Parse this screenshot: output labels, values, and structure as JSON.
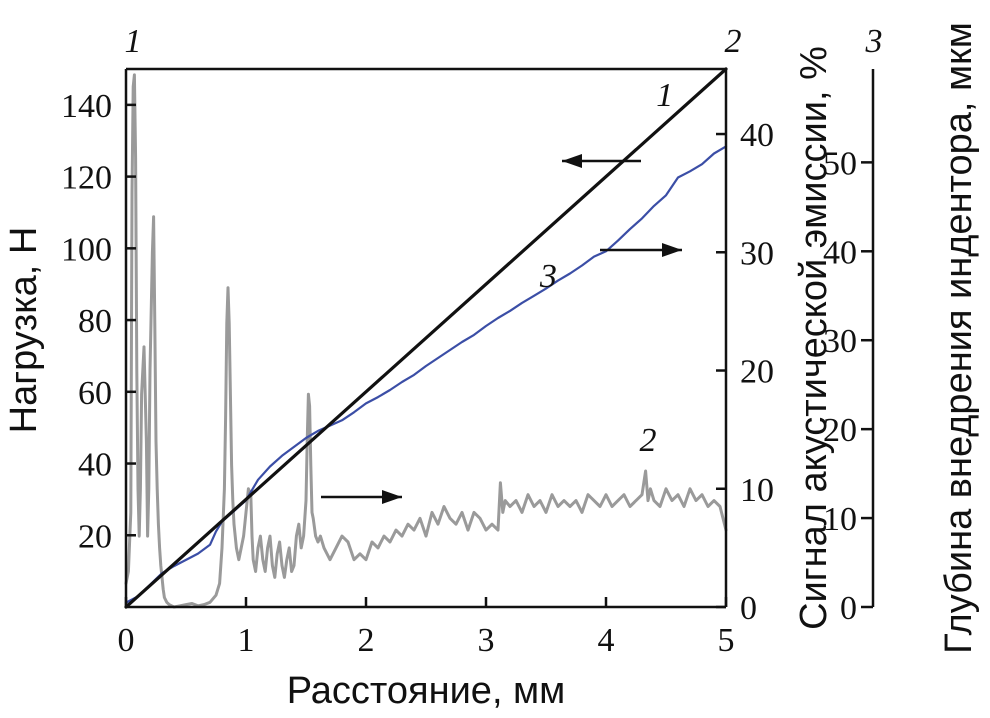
{
  "chart_data": {
    "type": "line",
    "xlabel": "Расстояние, мм",
    "ylabel_left": "Нагрузка, Н",
    "ylabel_right1": "Сигнал акустической эмиссии, %",
    "ylabel_right2": "Глубина внедрения индентора, мкм",
    "xlim": [
      0,
      5
    ],
    "ylim_left": [
      0,
      150
    ],
    "ylim_right1": [
      0,
      45.5
    ],
    "ylim_right2": [
      0,
      60.5
    ],
    "x_ticks": [
      "0",
      "1",
      "2",
      "3",
      "4",
      "5"
    ],
    "y_left_ticks": [
      "20",
      "40",
      "60",
      "80",
      "100",
      "120",
      "140"
    ],
    "y_right1_ticks": [
      "0",
      "10",
      "20",
      "30",
      "40"
    ],
    "y_right2_ticks": [
      "0",
      "10",
      "20",
      "30",
      "40",
      "50"
    ],
    "axis_numbers": {
      "left": "1",
      "right1": "2",
      "right2": "3"
    },
    "series": [
      {
        "name": "1",
        "axis": "left",
        "color": "#111111",
        "x": [
          0,
          5
        ],
        "y": [
          0,
          150
        ]
      },
      {
        "name": "2",
        "axis": "right1",
        "color": "#9a9a9a",
        "x": [
          0.0,
          0.02,
          0.04,
          0.05,
          0.06,
          0.07,
          0.08,
          0.09,
          0.1,
          0.11,
          0.12,
          0.13,
          0.15,
          0.17,
          0.18,
          0.19,
          0.2,
          0.21,
          0.22,
          0.23,
          0.24,
          0.25,
          0.26,
          0.27,
          0.28,
          0.29,
          0.3,
          0.31,
          0.32,
          0.34,
          0.36,
          0.38,
          0.4,
          0.45,
          0.5,
          0.55,
          0.6,
          0.65,
          0.7,
          0.75,
          0.78,
          0.8,
          0.82,
          0.83,
          0.84,
          0.85,
          0.86,
          0.87,
          0.88,
          0.89,
          0.9,
          0.92,
          0.94,
          0.96,
          0.98,
          1.0,
          1.02,
          1.04,
          1.05,
          1.06,
          1.08,
          1.1,
          1.12,
          1.14,
          1.16,
          1.18,
          1.2,
          1.22,
          1.24,
          1.26,
          1.28,
          1.3,
          1.32,
          1.34,
          1.36,
          1.38,
          1.4,
          1.42,
          1.44,
          1.46,
          1.48,
          1.5,
          1.51,
          1.52,
          1.53,
          1.54,
          1.55,
          1.56,
          1.58,
          1.6,
          1.62,
          1.65,
          1.7,
          1.75,
          1.8,
          1.85,
          1.9,
          1.95,
          2.0,
          2.05,
          2.1,
          2.15,
          2.2,
          2.25,
          2.3,
          2.35,
          2.4,
          2.45,
          2.5,
          2.55,
          2.6,
          2.65,
          2.7,
          2.75,
          2.8,
          2.85,
          2.9,
          2.95,
          3.0,
          3.05,
          3.1,
          3.12,
          3.14,
          3.16,
          3.2,
          3.25,
          3.3,
          3.35,
          3.4,
          3.45,
          3.5,
          3.55,
          3.6,
          3.65,
          3.7,
          3.75,
          3.8,
          3.85,
          3.9,
          3.95,
          4.0,
          4.05,
          4.1,
          4.15,
          4.2,
          4.25,
          4.3,
          4.33,
          4.35,
          4.37,
          4.4,
          4.45,
          4.5,
          4.55,
          4.6,
          4.65,
          4.7,
          4.75,
          4.8,
          4.85,
          4.9,
          4.95,
          5.0
        ],
        "y": [
          2.0,
          3.0,
          8.0,
          35.0,
          44.0,
          45.0,
          38.0,
          20.0,
          10.0,
          6.0,
          10.0,
          18.0,
          22.0,
          14.0,
          6.0,
          10.0,
          20.0,
          25.0,
          30.0,
          33.0,
          24.0,
          14.0,
          10.0,
          7.0,
          5.0,
          3.5,
          2.5,
          1.5,
          0.8,
          0.4,
          0.2,
          0.1,
          0.0,
          0.1,
          0.2,
          0.3,
          0.1,
          0.2,
          0.4,
          1.0,
          2.0,
          5.0,
          10.0,
          16.0,
          24.0,
          27.0,
          24.0,
          18.0,
          12.0,
          9.0,
          7.0,
          5.0,
          4.0,
          5.0,
          6.0,
          8.0,
          10.0,
          9.5,
          6.0,
          4.0,
          3.0,
          5.0,
          6.0,
          4.0,
          3.0,
          5.0,
          6.0,
          3.5,
          2.5,
          4.5,
          5.5,
          3.5,
          2.5,
          4.0,
          5.0,
          3.0,
          3.5,
          6.0,
          7.0,
          5.0,
          6.0,
          9.0,
          14.0,
          18.0,
          17.0,
          12.0,
          8.0,
          7.5,
          6.0,
          5.5,
          6.0,
          5.0,
          4.0,
          5.0,
          6.0,
          5.5,
          4.0,
          4.5,
          4.0,
          5.5,
          5.0,
          6.0,
          5.5,
          6.5,
          6.0,
          7.0,
          6.5,
          7.5,
          6.0,
          8.0,
          7.0,
          8.5,
          7.5,
          7.0,
          8.0,
          6.5,
          8.0,
          7.5,
          6.5,
          7.0,
          6.5,
          10.5,
          8.0,
          9.0,
          8.5,
          9.0,
          8.0,
          9.5,
          8.5,
          9.0,
          8.0,
          9.5,
          8.5,
          9.0,
          8.5,
          9.0,
          8.0,
          9.5,
          9.0,
          8.5,
          9.5,
          8.5,
          9.0,
          9.5,
          8.5,
          9.0,
          9.5,
          11.5,
          9.0,
          10.0,
          9.0,
          8.5,
          10.0,
          9.0,
          9.5,
          8.5,
          10.0,
          9.0,
          9.5,
          8.5,
          9.0,
          8.5,
          6.5
        ]
      },
      {
        "name": "3",
        "axis": "right2",
        "color": "#3b4ea6",
        "x": [
          0.0,
          0.1,
          0.2,
          0.3,
          0.4,
          0.5,
          0.6,
          0.7,
          0.75,
          0.8,
          0.9,
          1.0,
          1.1,
          1.2,
          1.3,
          1.4,
          1.5,
          1.6,
          1.7,
          1.8,
          1.9,
          2.0,
          2.1,
          2.2,
          2.3,
          2.4,
          2.5,
          2.6,
          2.7,
          2.8,
          2.9,
          3.0,
          3.1,
          3.2,
          3.3,
          3.4,
          3.5,
          3.6,
          3.7,
          3.8,
          3.9,
          4.0,
          4.1,
          4.2,
          4.3,
          4.4,
          4.5,
          4.6,
          4.7,
          4.8,
          4.9,
          5.0
        ],
        "y": [
          0.5,
          1.2,
          2.5,
          3.8,
          4.6,
          5.3,
          6.0,
          7.0,
          8.5,
          9.6,
          10.8,
          12.0,
          14.3,
          15.8,
          17.0,
          18.0,
          19.0,
          19.8,
          20.4,
          21.0,
          21.9,
          22.9,
          23.6,
          24.4,
          25.3,
          26.1,
          27.1,
          28.0,
          28.9,
          29.8,
          30.6,
          31.6,
          32.5,
          33.3,
          34.2,
          35.0,
          35.8,
          36.7,
          37.5,
          38.4,
          39.4,
          40.0,
          41.2,
          42.5,
          43.7,
          45.1,
          46.3,
          48.3,
          49.0,
          49.8,
          51.0,
          51.8
        ]
      }
    ],
    "annotations": [
      {
        "label": "1",
        "x": 4.49,
        "y_left": 139.7,
        "arrow": "left"
      },
      {
        "label": "2",
        "x": 4.35,
        "y_right1": 13.2,
        "arrow": "right"
      },
      {
        "label": "3",
        "x": 3.52,
        "y_right2": 36.0,
        "arrow": "right"
      }
    ]
  }
}
